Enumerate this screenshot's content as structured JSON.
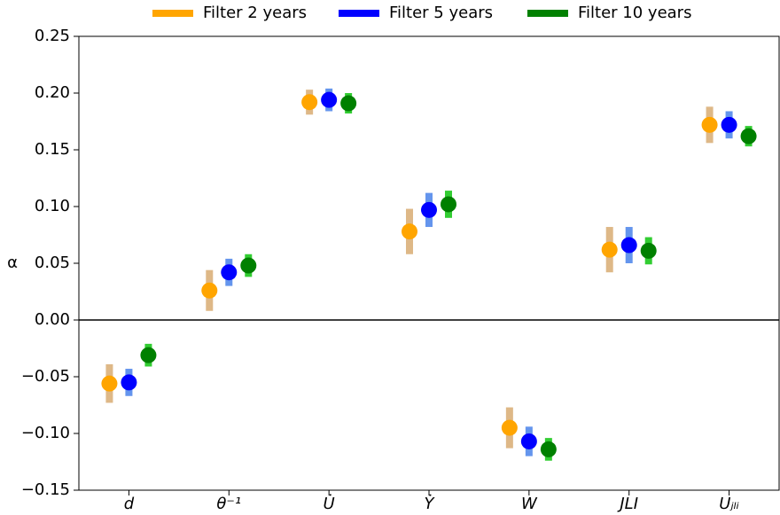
{
  "chart_data": {
    "type": "errorbar",
    "ylabel": "α",
    "categories": [
      "d",
      "θ⁻¹",
      "U̇",
      "Ẏ",
      "W",
      "JLI",
      "Uⱼₗᵢ"
    ],
    "series": [
      {
        "name": "Filter 2 years",
        "color": "#ffa500",
        "error_color": "#deb887",
        "values": [
          -0.056,
          0.026,
          0.192,
          0.078,
          -0.095,
          0.062,
          0.172
        ],
        "errors": [
          0.017,
          0.018,
          0.011,
          0.02,
          0.018,
          0.02,
          0.016
        ]
      },
      {
        "name": "Filter 5 years",
        "color": "#0000ff",
        "error_color": "#6495ed",
        "values": [
          -0.055,
          0.042,
          0.194,
          0.097,
          -0.107,
          0.066,
          0.172
        ],
        "errors": [
          0.012,
          0.012,
          0.01,
          0.015,
          0.013,
          0.016,
          0.012
        ]
      },
      {
        "name": "Filter 10 years",
        "color": "#008000",
        "error_color": "#32cd32",
        "values": [
          -0.031,
          0.048,
          0.191,
          0.102,
          -0.114,
          0.061,
          0.162
        ],
        "errors": [
          0.01,
          0.01,
          0.009,
          0.012,
          0.01,
          0.012,
          0.009
        ]
      }
    ],
    "ylim": [
      -0.15,
      0.25
    ],
    "yticks": [
      {
        "value": -0.15,
        "label": "−0.15"
      },
      {
        "value": -0.1,
        "label": "−0.10"
      },
      {
        "value": -0.05,
        "label": "−0.05"
      },
      {
        "value": 0,
        "label": "0.00"
      },
      0.05,
      {
        "value": 0.1,
        "label": "0.10"
      },
      0.15,
      {
        "value": 0.2,
        "label": "0.20"
      },
      0.25
    ],
    "zero_line": true,
    "legend": "top"
  }
}
